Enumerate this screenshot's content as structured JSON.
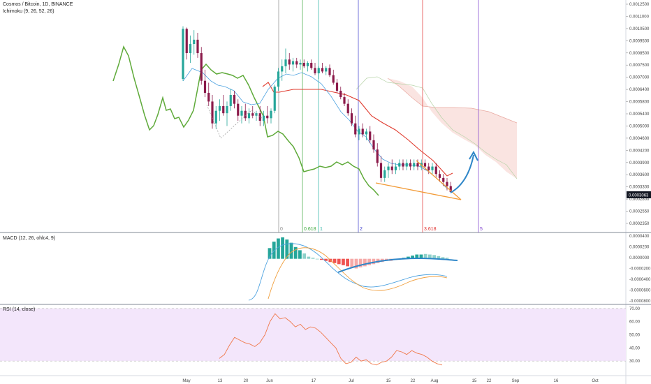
{
  "header": {
    "title": "Cosmos / Bitcoin, 1D, BINANCE",
    "indicator": "Ichimoku (9, 26, 52, 26)"
  },
  "panes": {
    "macd_label": "MACD (12, 26, ohlc4, 9)",
    "rsi_label": "RSI (14, close)"
  },
  "colors": {
    "up": "#26a69a",
    "down": "#8b1a4a",
    "lagging_span": "#5faa3a",
    "base_line": "#e03b2e",
    "conversion_line": "#4fa3e0",
    "cloud_bear": "#f8d9d4",
    "trend": "#f29b38",
    "arrow": "#2e86c8",
    "rsi_band": "#f3e6fb",
    "rsi_line": "#f0784a",
    "macd_line": "#4fa3e0",
    "signal_line": "#f0a040",
    "price_tag": "#131722"
  },
  "price_axis": {
    "ticks": [
      "0.0012500",
      "0.0011000",
      "0.0010500",
      "0.0009500",
      "0.0008500",
      "0.0007500",
      "0.0007000",
      "0.0006400",
      "0.0005800",
      "0.0005400",
      "0.0005000",
      "0.0004600",
      "0.0004200",
      "0.0003900",
      "0.0003600",
      "0.0003300",
      "0.0002800",
      "0.0002550",
      "0.0002350"
    ],
    "current_price": "0.0003063"
  },
  "macd_axis": {
    "ticks": [
      "0.0000400",
      "0.0000200",
      "0.0000000",
      "-0.0000200",
      "-0.0000400",
      "-0.0000600",
      "-0.0000800"
    ]
  },
  "rsi_axis": {
    "ticks": [
      "70.00",
      "60.00",
      "50.00",
      "40.00",
      "30.00"
    ]
  },
  "time_axis": {
    "ticks": [
      "May",
      "13",
      "20",
      "Jun",
      "17",
      "Jul",
      "15",
      "22",
      "Aug",
      "15",
      "22",
      "Sep",
      "16",
      "Oct"
    ]
  },
  "fib_time_zones": [
    "0",
    "0.618",
    "1",
    "2",
    "3.618",
    "5"
  ],
  "chart_data": {
    "type": "candlestick",
    "title": "Cosmos / Bitcoin, 1D, BINANCE",
    "symbol": "ATOM/BTC",
    "y_scale": "log",
    "ylim": [
      0.000235,
      0.00125
    ],
    "x_range": [
      "May",
      "Oct"
    ],
    "last_close": 0.0003063,
    "candles": [
      {
        "x": "May 1",
        "o": 0.00071,
        "h": 0.00105,
        "l": 0.0007,
        "c": 0.00103
      },
      {
        "x": "May 2",
        "o": 0.00103,
        "h": 0.00104,
        "l": 0.00082,
        "c": 0.00086
      },
      {
        "x": "May 3",
        "o": 0.00086,
        "h": 0.00098,
        "l": 0.0008,
        "c": 0.00092
      },
      {
        "x": "May 4",
        "o": 0.00092,
        "h": 0.00102,
        "l": 0.00085,
        "c": 0.00095
      },
      {
        "x": "May 5",
        "o": 0.00095,
        "h": 0.001,
        "l": 0.00083,
        "c": 0.00086
      },
      {
        "x": "May 6",
        "o": 0.00086,
        "h": 0.0009,
        "l": 0.00068,
        "c": 0.0007
      },
      {
        "x": "May 7",
        "o": 0.0007,
        "h": 0.00076,
        "l": 0.00062,
        "c": 0.00064
      },
      {
        "x": "May 8",
        "o": 0.00064,
        "h": 0.00069,
        "l": 0.00058,
        "c": 0.0006
      },
      {
        "x": "May 9",
        "o": 0.0006,
        "h": 0.00063,
        "l": 0.00049,
        "c": 0.00051
      },
      {
        "x": "May 10",
        "o": 0.00051,
        "h": 0.00058,
        "l": 0.00049,
        "c": 0.00056
      },
      {
        "x": "May 11",
        "o": 0.00056,
        "h": 0.00061,
        "l": 0.00052,
        "c": 0.00058
      },
      {
        "x": "May 12",
        "o": 0.00058,
        "h": 0.00063,
        "l": 0.00054,
        "c": 0.00055
      },
      {
        "x": "May 13",
        "o": 0.00055,
        "h": 0.0006,
        "l": 0.0005,
        "c": 0.00058
      },
      {
        "x": "May 14",
        "o": 0.00058,
        "h": 0.00066,
        "l": 0.00056,
        "c": 0.00063
      },
      {
        "x": "May 15",
        "o": 0.00063,
        "h": 0.00065,
        "l": 0.00057,
        "c": 0.00059
      },
      {
        "x": "May 16",
        "o": 0.00059,
        "h": 0.00061,
        "l": 0.00052,
        "c": 0.00054
      },
      {
        "x": "May 17",
        "o": 0.00054,
        "h": 0.00058,
        "l": 0.00051,
        "c": 0.00056
      },
      {
        "x": "May 18",
        "o": 0.00056,
        "h": 0.00059,
        "l": 0.00052,
        "c": 0.00053
      },
      {
        "x": "May 19",
        "o": 0.00053,
        "h": 0.00057,
        "l": 0.00051,
        "c": 0.00055
      },
      {
        "x": "May 20",
        "o": 0.00055,
        "h": 0.00058,
        "l": 0.00053,
        "c": 0.00054
      },
      {
        "x": "May 21",
        "o": 0.00054,
        "h": 0.00056,
        "l": 0.00052,
        "c": 0.00055
      },
      {
        "x": "May 22",
        "o": 0.00055,
        "h": 0.00058,
        "l": 0.0005,
        "c": 0.00052
      },
      {
        "x": "May 23",
        "o": 0.00052,
        "h": 0.00056,
        "l": 0.0005,
        "c": 0.00054
      },
      {
        "x": "May 24",
        "o": 0.00054,
        "h": 0.00058,
        "l": 0.00051,
        "c": 0.00053
      },
      {
        "x": "May 25",
        "o": 0.00053,
        "h": 0.00057,
        "l": 0.00051,
        "c": 0.00056
      },
      {
        "x": "May 26",
        "o": 0.00056,
        "h": 0.00068,
        "l": 0.00055,
        "c": 0.00067
      },
      {
        "x": "May 27",
        "o": 0.00067,
        "h": 0.00077,
        "l": 0.00065,
        "c": 0.00075
      },
      {
        "x": "May 28",
        "o": 0.00075,
        "h": 0.00082,
        "l": 0.0007,
        "c": 0.00078
      },
      {
        "x": "May 29",
        "o": 0.00078,
        "h": 0.00089,
        "l": 0.00074,
        "c": 0.00082
      },
      {
        "x": "May 30",
        "o": 0.00082,
        "h": 0.00086,
        "l": 0.00076,
        "c": 0.00079
      },
      {
        "x": "May 31",
        "o": 0.00079,
        "h": 0.00083,
        "l": 0.00075,
        "c": 0.00081
      },
      {
        "x": "Jun 1",
        "o": 0.00081,
        "h": 0.00083,
        "l": 0.00077,
        "c": 0.00079
      },
      {
        "x": "Jun 2",
        "o": 0.00079,
        "h": 0.00082,
        "l": 0.00076,
        "c": 0.0008
      },
      {
        "x": "Jun 3",
        "o": 0.0008,
        "h": 0.00082,
        "l": 0.00077,
        "c": 0.00078
      },
      {
        "x": "Jun 4",
        "o": 0.00078,
        "h": 0.00081,
        "l": 0.00075,
        "c": 0.0008
      },
      {
        "x": "Jun 5",
        "o": 0.0008,
        "h": 0.00082,
        "l": 0.00076,
        "c": 0.00077
      },
      {
        "x": "Jun 6",
        "o": 0.00077,
        "h": 0.0008,
        "l": 0.00073,
        "c": 0.00074
      },
      {
        "x": "Jun 7",
        "o": 0.00074,
        "h": 0.00078,
        "l": 0.00071,
        "c": 0.00077
      },
      {
        "x": "Jun 8",
        "o": 0.00077,
        "h": 0.0008,
        "l": 0.00074,
        "c": 0.00075
      },
      {
        "x": "Jun 9",
        "o": 0.00075,
        "h": 0.00078,
        "l": 0.00073,
        "c": 0.00077
      },
      {
        "x": "Jun 10",
        "o": 0.00077,
        "h": 0.00079,
        "l": 0.00072,
        "c": 0.00073
      },
      {
        "x": "Jun 11",
        "o": 0.00073,
        "h": 0.00076,
        "l": 0.00068,
        "c": 0.00069
      },
      {
        "x": "Jun 12",
        "o": 0.00069,
        "h": 0.00071,
        "l": 0.00064,
        "c": 0.00065
      },
      {
        "x": "Jun 13",
        "o": 0.00065,
        "h": 0.00067,
        "l": 0.00061,
        "c": 0.00062
      },
      {
        "x": "Jun 14",
        "o": 0.00062,
        "h": 0.00064,
        "l": 0.00058,
        "c": 0.00059
      },
      {
        "x": "Jun 15",
        "o": 0.00059,
        "h": 0.00061,
        "l": 0.00054,
        "c": 0.00055
      },
      {
        "x": "Jun 16",
        "o": 0.00055,
        "h": 0.00057,
        "l": 0.0005,
        "c": 0.00051
      },
      {
        "x": "Jun 17",
        "o": 0.00051,
        "h": 0.00054,
        "l": 0.00046,
        "c": 0.00047
      },
      {
        "x": "Jun 18",
        "o": 0.00047,
        "h": 0.0005,
        "l": 0.00045,
        "c": 0.00049
      },
      {
        "x": "Jun 19",
        "o": 0.00049,
        "h": 0.00051,
        "l": 0.00046,
        "c": 0.00047
      },
      {
        "x": "Jun 20",
        "o": 0.00047,
        "h": 0.00049,
        "l": 0.00045,
        "c": 0.00048
      },
      {
        "x": "Jun 21",
        "o": 0.00048,
        "h": 0.0005,
        "l": 0.00044,
        "c": 0.00045
      },
      {
        "x": "Jun 22",
        "o": 0.00045,
        "h": 0.00047,
        "l": 0.00041,
        "c": 0.00042
      },
      {
        "x": "Jun 23",
        "o": 0.00042,
        "h": 0.00044,
        "l": 0.00037,
        "c": 0.00038
      },
      {
        "x": "Jun 24",
        "o": 0.00038,
        "h": 0.0004,
        "l": 0.00033,
        "c": 0.00034
      },
      {
        "x": "Jun 25",
        "o": 0.00034,
        "h": 0.00037,
        "l": 0.00033,
        "c": 0.00036
      },
      {
        "x": "Jun 26",
        "o": 0.00036,
        "h": 0.00038,
        "l": 0.00034,
        "c": 0.00037
      },
      {
        "x": "Jun 27",
        "o": 0.00037,
        "h": 0.00039,
        "l": 0.00035,
        "c": 0.00036
      },
      {
        "x": "Jun 28",
        "o": 0.00036,
        "h": 0.00038,
        "l": 0.00035,
        "c": 0.00037
      },
      {
        "x": "Jun 29",
        "o": 0.00037,
        "h": 0.00039,
        "l": 0.00036,
        "c": 0.00038
      },
      {
        "x": "Jun 30",
        "o": 0.00038,
        "h": 0.00039,
        "l": 0.00036,
        "c": 0.00037
      },
      {
        "x": "Jul 1",
        "o": 0.00037,
        "h": 0.00039,
        "l": 0.00036,
        "c": 0.00038
      },
      {
        "x": "Jul 2",
        "o": 0.00038,
        "h": 0.00039,
        "l": 0.00036,
        "c": 0.00037
      },
      {
        "x": "Jul 3",
        "o": 0.00037,
        "h": 0.00039,
        "l": 0.00036,
        "c": 0.00038
      },
      {
        "x": "Jul 4",
        "o": 0.00038,
        "h": 0.00039,
        "l": 0.00036,
        "c": 0.00037
      },
      {
        "x": "Jul 5",
        "o": 0.00037,
        "h": 0.00039,
        "l": 0.00036,
        "c": 0.00038
      },
      {
        "x": "Jul 6",
        "o": 0.00038,
        "h": 0.00039,
        "l": 0.00036,
        "c": 0.00037
      },
      {
        "x": "Jul 7",
        "o": 0.00037,
        "h": 0.00038,
        "l": 0.00035,
        "c": 0.00036
      },
      {
        "x": "Jul 8",
        "o": 0.00036,
        "h": 0.00038,
        "l": 0.00035,
        "c": 0.00037
      },
      {
        "x": "Jul 9",
        "o": 0.00037,
        "h": 0.00038,
        "l": 0.00034,
        "c": 0.00035
      },
      {
        "x": "Jul 10",
        "o": 0.00035,
        "h": 0.00036,
        "l": 0.00033,
        "c": 0.00034
      },
      {
        "x": "Jul 11",
        "o": 0.00034,
        "h": 0.00035,
        "l": 0.00032,
        "c": 0.00033
      },
      {
        "x": "Jul 12",
        "o": 0.00033,
        "h": 0.00034,
        "l": 0.00031,
        "c": 0.00032
      },
      {
        "x": "Jul 13",
        "o": 0.00032,
        "h": 0.00033,
        "l": 0.000305,
        "c": 0.0003063
      }
    ],
    "overlays": {
      "ichimoku_cloud": "bearish, ahead of price from late Jun to Sep",
      "trendline": "descending wedge lower line",
      "projection_arrow": "upward curve from last candle into cloud"
    },
    "macd": {
      "histogram": [
        2e-05,
        3.2e-05,
        3.8e-05,
        4e-05,
        3.6e-05,
        3e-05,
        2.2e-05,
        1.6e-05,
        1e-05,
        4e-06,
        2e-06,
        0.0,
        -2e-06,
        -4e-06,
        -6e-06,
        -8e-06,
        -1e-05,
        -1.2e-05,
        -1.4e-05,
        -1.6e-05,
        -1.8e-05,
        -1.6e-05,
        -1.4e-05,
        -1.2e-05,
        -1e-05,
        -8e-06,
        -6e-06,
        -4e-06,
        -4e-06,
        -2e-06,
        0.0,
        2e-06,
        4e-06,
        6e-06,
        8e-06,
        8e-06,
        9e-06,
        8e-06,
        7e-06,
        5e-06,
        3e-06,
        2e-06
      ],
      "ylim": [
        -8e-05,
        4e-05
      ]
    },
    "rsi": {
      "values": [
        32,
        35,
        42,
        48,
        46,
        44,
        43,
        41,
        44,
        50,
        60,
        66,
        62,
        63,
        60,
        56,
        58,
        54,
        56,
        55,
        52,
        48,
        44,
        40,
        32,
        28,
        29,
        33,
        30,
        31,
        28,
        27,
        29,
        30,
        33,
        38,
        37,
        35,
        38,
        36,
        35,
        33,
        30,
        28,
        27
      ],
      "ylim": [
        20,
        72
      ],
      "band": [
        30,
        70
      ]
    }
  }
}
